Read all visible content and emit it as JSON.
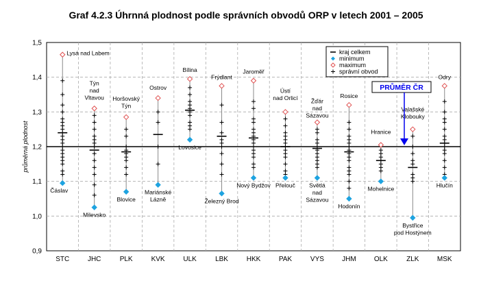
{
  "chart_data": {
    "type": "scatter",
    "title": "Graf 4.2.3 Úhrnná plodnost podle správních obvodů ORP v letech 2001 – 2005",
    "ylabel": "průměrná plodnost",
    "xlabel": "",
    "ylim": [
      0.9,
      1.5
    ],
    "yticks": [
      "0,9",
      "1,0",
      "1,1",
      "1,2",
      "1,3",
      "1,4",
      "1,5"
    ],
    "grid": "horizontal dashed",
    "legend_position": "top-right",
    "legend": [
      {
        "symbol": "—",
        "label": "kraj celkem"
      },
      {
        "symbol": "◆",
        "label": "minimum"
      },
      {
        "symbol": "◇",
        "label": "maximum"
      },
      {
        "symbol": "+",
        "label": "správní obvod"
      }
    ],
    "colors": {
      "minimum": "#1ea3e0",
      "maximum": "#e05050",
      "line": "#888888",
      "reference": "#0000ee"
    },
    "reference": {
      "label": "PRŮMĚR ČR",
      "value": 1.2
    },
    "categories": [
      {
        "name": "STC",
        "kraj": 1.24,
        "min": 1.095,
        "max": 1.465,
        "min_label": "Čáslav",
        "max_label": "Lysá nad Labem",
        "obvody": [
          1.39,
          1.35,
          1.32,
          1.3,
          1.28,
          1.27,
          1.26,
          1.25,
          1.24,
          1.23,
          1.22,
          1.21,
          1.2,
          1.19,
          1.18,
          1.17,
          1.16,
          1.15,
          1.13,
          1.12
        ]
      },
      {
        "name": "JHC",
        "kraj": 1.19,
        "min": 1.025,
        "max": 1.31,
        "min_label": "Milevsko",
        "max_label": "Týn nad Vltavou",
        "obvody": [
          1.29,
          1.27,
          1.25,
          1.23,
          1.22,
          1.21,
          1.2,
          1.18,
          1.16,
          1.14,
          1.12,
          1.09,
          1.06
        ]
      },
      {
        "name": "PLK",
        "kraj": 1.185,
        "min": 1.07,
        "max": 1.285,
        "min_label": "Blovice",
        "max_label": "Horšovský Týn",
        "obvody": [
          1.25,
          1.23,
          1.2,
          1.19,
          1.18,
          1.17,
          1.16,
          1.14,
          1.12
        ]
      },
      {
        "name": "KVK",
        "kraj": 1.235,
        "min": 1.09,
        "max": 1.34,
        "min_label": "Mariánské Lázně",
        "max_label": "Ostrov",
        "obvody": [
          1.3,
          1.27,
          1.2,
          1.15
        ]
      },
      {
        "name": "ULK",
        "kraj": 1.305,
        "min": 1.22,
        "max": 1.395,
        "min_label": "Lovosice",
        "max_label": "Bílina",
        "obvody": [
          1.37,
          1.35,
          1.33,
          1.32,
          1.31,
          1.3,
          1.29,
          1.27,
          1.26,
          1.25
        ]
      },
      {
        "name": "LBK",
        "kraj": 1.23,
        "min": 1.065,
        "max": 1.375,
        "min_label": "Železný Brod",
        "max_label": "Frýdlant",
        "obvody": [
          1.32,
          1.27,
          1.24,
          1.22,
          1.21,
          1.2,
          1.18,
          1.15,
          1.12
        ]
      },
      {
        "name": "HKK",
        "kraj": 1.225,
        "min": 1.11,
        "max": 1.39,
        "min_label": "Nový Bydžov",
        "max_label": "Jaroměř",
        "obvody": [
          1.33,
          1.31,
          1.28,
          1.27,
          1.25,
          1.24,
          1.23,
          1.22,
          1.21,
          1.2,
          1.19,
          1.18,
          1.17,
          1.15,
          1.14
        ]
      },
      {
        "name": "PAK",
        "kraj": 1.2,
        "min": 1.11,
        "max": 1.3,
        "min_label": "Přelouč",
        "max_label": "Ústí nad Orlicí",
        "obvody": [
          1.28,
          1.26,
          1.24,
          1.23,
          1.22,
          1.21,
          1.2,
          1.19,
          1.18,
          1.17,
          1.15,
          1.13,
          1.12
        ]
      },
      {
        "name": "VYS",
        "kraj": 1.195,
        "min": 1.11,
        "max": 1.27,
        "min_label": "Světlá nad Sázavou",
        "max_label": "Žďár nad Sázavou",
        "obvody": [
          1.25,
          1.24,
          1.22,
          1.21,
          1.2,
          1.19,
          1.18,
          1.17,
          1.16,
          1.15,
          1.14
        ]
      },
      {
        "name": "JHM",
        "kraj": 1.185,
        "min": 1.05,
        "max": 1.32,
        "min_label": "Hodonín",
        "max_label": "Rosice",
        "obvody": [
          1.27,
          1.25,
          1.23,
          1.22,
          1.21,
          1.2,
          1.19,
          1.18,
          1.17,
          1.16,
          1.14,
          1.13,
          1.12,
          1.1,
          1.08
        ]
      },
      {
        "name": "OLK",
        "kraj": 1.16,
        "min": 1.1,
        "max": 1.205,
        "min_label": "Mohelnice",
        "max_label": "Hranice",
        "obvody": [
          1.19,
          1.18,
          1.17,
          1.16,
          1.15,
          1.14,
          1.13
        ]
      },
      {
        "name": "ZLK",
        "kraj": 1.14,
        "min": 0.995,
        "max": 1.25,
        "min_label": "Bystřice pod Hostýnem",
        "max_label": "Valašské Klobouky",
        "obvody": [
          1.23,
          1.2,
          1.18,
          1.16,
          1.15,
          1.12,
          1.11,
          1.1
        ]
      },
      {
        "name": "MSK",
        "kraj": 1.21,
        "min": 1.11,
        "max": 1.375,
        "min_label": "Hlučín",
        "max_label": "Odry",
        "obvody": [
          1.33,
          1.3,
          1.28,
          1.27,
          1.25,
          1.23,
          1.22,
          1.21,
          1.2,
          1.19,
          1.18,
          1.16,
          1.14,
          1.12
        ]
      }
    ]
  }
}
